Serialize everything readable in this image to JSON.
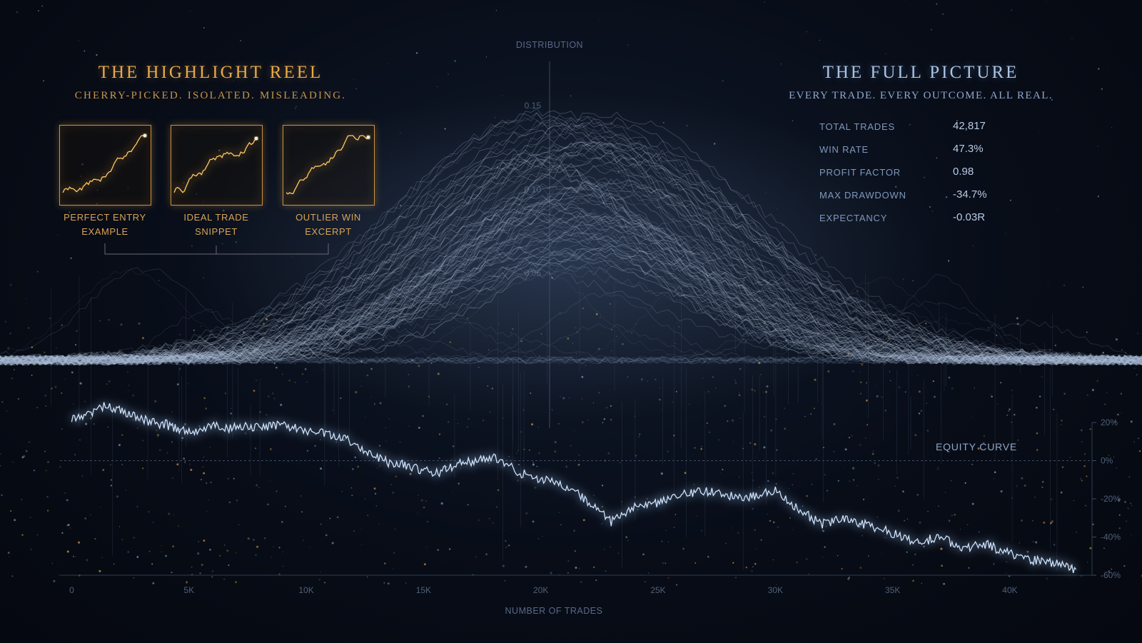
{
  "highlight_reel": {
    "title": "THE HIGHLIGHT REEL",
    "subtitle": "CHERRY-PICKED. ISOLATED. MISLEADING.",
    "accent_color": "#e8a94a",
    "snippets": [
      {
        "line1": "PERFECT ENTRY",
        "line2": "EXAMPLE"
      },
      {
        "line1": "IDEAL TRADE",
        "line2": "SNIPPET"
      },
      {
        "line1": "OUTLIER WIN",
        "line2": "EXCERPT"
      }
    ]
  },
  "full_picture": {
    "title": "THE FULL PICTURE",
    "subtitle": "EVERY TRADE. EVERY OUTCOME. ALL REAL.",
    "accent_color": "#a9c3e6",
    "stats": [
      {
        "label": "TOTAL TRADES",
        "value": "42,817"
      },
      {
        "label": "WIN RATE",
        "value": "47.3%"
      },
      {
        "label": "PROFIT FACTOR",
        "value": "0.98"
      },
      {
        "label": "MAX DRAWDOWN",
        "value": "-34.7%"
      },
      {
        "label": "EXPECTANCY",
        "value": "-0.03R"
      }
    ]
  },
  "chart_data": [
    {
      "type": "line",
      "title": "DISTRIBUTION",
      "ylim": [
        0,
        0.15
      ],
      "y_ticks": [
        "0.15",
        "0.10",
        "0.05"
      ],
      "y_tick_values": [
        0.15,
        0.1,
        0.05
      ],
      "description_note": "",
      "color": "#b8c9e0"
    },
    {
      "type": "line",
      "title": "EQUITY CURVE",
      "xlabel": "NUMBER OF TRADES",
      "x_ticks": [
        "0",
        "5K",
        "10K",
        "15K",
        "20K",
        "25K",
        "30K",
        "35K",
        "40K"
      ],
      "x_tick_values": [
        0,
        5000,
        10000,
        15000,
        20000,
        25000,
        30000,
        35000,
        40000
      ],
      "y_ticks": [
        "20%",
        "0%",
        "-20%",
        "-40%",
        "-60%"
      ],
      "y_tick_values": [
        20,
        0,
        -20,
        -40,
        -60
      ],
      "xlim": [
        -500,
        43500
      ],
      "ylim": [
        -60,
        20
      ],
      "color": "#9cc4f0",
      "series": [
        {
          "x": [
            0,
            1000,
            1500,
            2500,
            3500,
            4000,
            5000,
            6000,
            7000,
            8000,
            9000,
            10000,
            11000,
            12000,
            12500,
            13500,
            14500,
            15500,
            16500,
            17500,
            18000,
            18500,
            19000,
            20000,
            21000,
            22000,
            22500,
            23000,
            23500,
            24000,
            25000,
            26000,
            27000,
            28000,
            29000,
            30000,
            30500,
            31000,
            32000,
            33000,
            34000,
            35000,
            35500,
            36000,
            37000,
            38000,
            39000,
            40000,
            41000,
            42000,
            42817
          ],
          "y": [
            22,
            26,
            29,
            24,
            20,
            19,
            15,
            18,
            17,
            18,
            19,
            16,
            14,
            10,
            5,
            -1,
            -3,
            -7,
            -2,
            1,
            2,
            -1,
            -6,
            -10,
            -13,
            -21,
            -26,
            -32,
            -29,
            -24,
            -22,
            -18,
            -16,
            -18,
            -19,
            -15,
            -20,
            -26,
            -33,
            -30,
            -34,
            -38,
            -41,
            -43,
            -40,
            -46,
            -44,
            -49,
            -52,
            -54,
            -57
          ]
        }
      ]
    }
  ]
}
